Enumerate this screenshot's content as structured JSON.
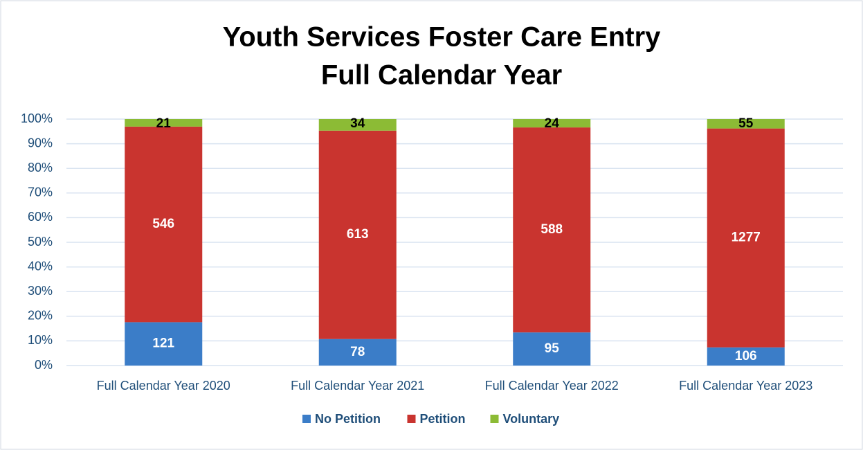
{
  "chart_data": {
    "type": "bar",
    "stacking": "percent",
    "title": "Youth Services Foster Care Entry",
    "subtitle": "Full Calendar Year",
    "categories": [
      "Full Calendar Year 2020",
      "Full Calendar Year 2021",
      "Full Calendar Year 2022",
      "Full Calendar Year 2023"
    ],
    "series": [
      {
        "name": "No Petition",
        "color": "#3b7dc8",
        "values": [
          121,
          78,
          95,
          106
        ]
      },
      {
        "name": "Petition",
        "color": "#c9342f",
        "values": [
          546,
          613,
          588,
          1277
        ]
      },
      {
        "name": "Voluntary",
        "color": "#8cbb35",
        "values": [
          21,
          34,
          24,
          55
        ]
      }
    ],
    "ylim": [
      0,
      100
    ],
    "yticks": [
      {
        "value": 0,
        "label": "0%"
      },
      {
        "value": 10,
        "label": "10%"
      },
      {
        "value": 20,
        "label": "20%"
      },
      {
        "value": 30,
        "label": "30%"
      },
      {
        "value": 40,
        "label": "40%"
      },
      {
        "value": 50,
        "label": "50%"
      },
      {
        "value": 60,
        "label": "60%"
      },
      {
        "value": 70,
        "label": "70%"
      },
      {
        "value": 80,
        "label": "80%"
      },
      {
        "value": 90,
        "label": "90%"
      },
      {
        "value": 100,
        "label": "100%"
      }
    ],
    "grid": true,
    "legend": "bottom"
  }
}
